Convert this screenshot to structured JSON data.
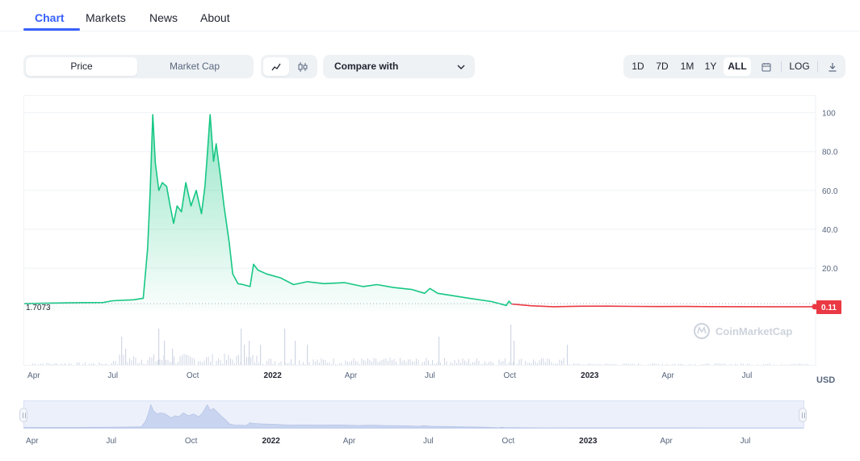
{
  "tabs": [
    {
      "label": "Chart",
      "active": true
    },
    {
      "label": "Markets",
      "active": false
    },
    {
      "label": "News",
      "active": false
    },
    {
      "label": "About",
      "active": false
    }
  ],
  "toolbar": {
    "metric_options": [
      "Price",
      "Market Cap"
    ],
    "metric_selected": "Price",
    "chart_types": [
      "line-chart-icon",
      "candlestick-icon"
    ],
    "compare_label": "Compare with",
    "ranges": [
      "1D",
      "7D",
      "1M",
      "1Y",
      "ALL"
    ],
    "range_selected": "ALL",
    "calendar_icon": "calendar-icon",
    "log_label": "LOG",
    "download_icon": "download-icon"
  },
  "chart": {
    "watermark": "CoinMarketCap",
    "start_price_label": "1.7073",
    "current_price_label": "0.11",
    "currency_label": "USD",
    "colors": {
      "up": "#16c784",
      "down": "#ea3943",
      "grid": "#eff2f5",
      "volume": "#cfd6e4",
      "text": "#58667e"
    }
  },
  "chart_data": {
    "type": "line",
    "xlabel": "",
    "ylabel": "",
    "y_ticks": [
      "20.0",
      "40.0",
      "60.0",
      "80.0",
      "100"
    ],
    "ylim": [
      -2,
      104
    ],
    "y_tick_values": [
      20,
      40,
      60,
      80,
      100
    ],
    "x_ticks": [
      "Apr",
      "Jul",
      "Oct",
      "2022",
      "Apr",
      "Jul",
      "Oct",
      "2023",
      "Apr",
      "Jul"
    ],
    "x_tick_dates": [
      "2021-04-01",
      "2021-07-01",
      "2021-10-01",
      "2022-01-01",
      "2022-04-01",
      "2022-07-01",
      "2022-10-01",
      "2023-01-01",
      "2023-04-01",
      "2023-07-01"
    ],
    "xlim": [
      "2021-03-21",
      "2023-09-18"
    ],
    "reference_line": 1.7073,
    "grid": true,
    "series": [
      {
        "color": "#16c784",
        "points": [
          [
            "2021-03-21",
            1.7
          ],
          [
            "2021-04-20",
            2.0
          ],
          [
            "2021-05-20",
            2.2
          ],
          [
            "2021-06-20",
            2.3
          ],
          [
            "2021-07-01",
            3.2
          ],
          [
            "2021-07-25",
            3.7
          ],
          [
            "2021-08-05",
            4.5
          ],
          [
            "2021-08-10",
            30
          ],
          [
            "2021-08-13",
            60
          ],
          [
            "2021-08-16",
            99
          ],
          [
            "2021-08-19",
            74
          ],
          [
            "2021-08-23",
            60
          ],
          [
            "2021-08-27",
            64
          ],
          [
            "2021-09-01",
            62
          ],
          [
            "2021-09-05",
            52
          ],
          [
            "2021-09-09",
            43
          ],
          [
            "2021-09-13",
            52
          ],
          [
            "2021-09-18",
            49
          ],
          [
            "2021-09-23",
            64
          ],
          [
            "2021-09-29",
            52
          ],
          [
            "2021-10-05",
            60
          ],
          [
            "2021-10-11",
            48
          ],
          [
            "2021-10-15",
            62
          ],
          [
            "2021-10-18",
            80
          ],
          [
            "2021-10-21",
            99
          ],
          [
            "2021-10-25",
            75
          ],
          [
            "2021-10-28",
            84
          ],
          [
            "2021-11-02",
            67
          ],
          [
            "2021-11-06",
            52
          ],
          [
            "2021-11-12",
            33
          ],
          [
            "2021-11-16",
            17
          ],
          [
            "2021-11-22",
            12
          ],
          [
            "2021-11-28",
            11.5
          ],
          [
            "2021-12-06",
            10.5
          ],
          [
            "2021-12-10",
            22
          ],
          [
            "2021-12-15",
            19
          ],
          [
            "2021-12-25",
            17
          ],
          [
            "2022-01-10",
            15
          ],
          [
            "2022-01-25",
            11.5
          ],
          [
            "2022-02-10",
            13
          ],
          [
            "2022-03-01",
            12
          ],
          [
            "2022-03-25",
            12.5
          ],
          [
            "2022-04-15",
            10.5
          ],
          [
            "2022-05-01",
            11.5
          ],
          [
            "2022-05-20",
            10
          ],
          [
            "2022-06-10",
            9
          ],
          [
            "2022-06-25",
            7
          ],
          [
            "2022-07-01",
            9.5
          ],
          [
            "2022-07-10",
            7
          ],
          [
            "2022-07-25",
            6
          ],
          [
            "2022-08-15",
            4.5
          ],
          [
            "2022-09-10",
            2.8
          ],
          [
            "2022-09-27",
            0.8
          ],
          [
            "2022-09-30",
            3.0
          ],
          [
            "2022-10-03",
            1.5
          ]
        ]
      },
      {
        "color": "#ea3943",
        "points": [
          [
            "2022-10-03",
            1.5
          ],
          [
            "2022-10-25",
            0.6
          ],
          [
            "2022-11-20",
            0.1
          ],
          [
            "2022-12-20",
            0.35
          ],
          [
            "2023-01-20",
            0.4
          ],
          [
            "2023-02-20",
            0.3
          ],
          [
            "2023-03-20",
            0.2
          ],
          [
            "2023-04-20",
            0.25
          ],
          [
            "2023-05-20",
            0.15
          ],
          [
            "2023-07-20",
            0.12
          ],
          [
            "2023-09-17",
            0.11
          ]
        ]
      }
    ]
  }
}
